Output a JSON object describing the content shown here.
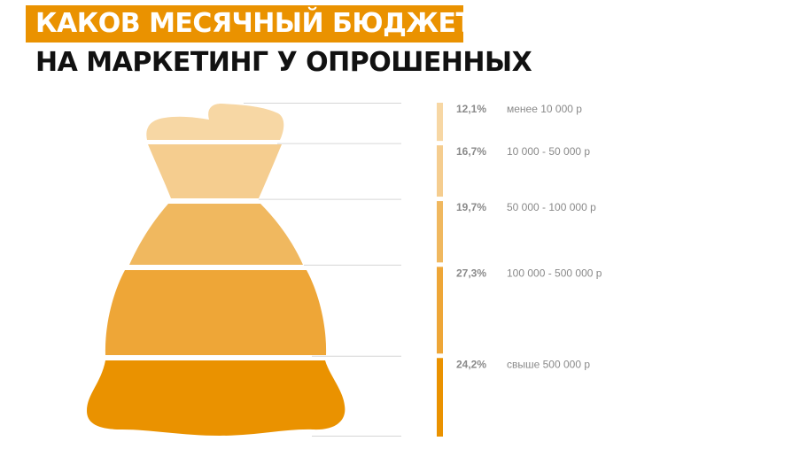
{
  "header": {
    "title_line1": "КАКОВ МЕСЯЧНЫЙ БЮДЖЕТ",
    "title_line2": "НА МАРКЕТИНГ У ОПРОШЕННЫХ"
  },
  "chart_data": {
    "type": "bar",
    "orientation": "stacked-vertical",
    "categories": [
      "менее 10 000 р",
      "10 000 - 50 000 р",
      "50 000 - 100 000 р",
      "100 000 - 500 000 р",
      "свыше 500 000 р"
    ],
    "values": [
      12.1,
      16.7,
      19.7,
      27.3,
      24.2
    ],
    "value_labels": [
      "12,1%",
      "16,7%",
      "19,7%",
      "27,3%",
      "24,2%"
    ],
    "colors": [
      "#f7d7a4",
      "#f5cd8f",
      "#f0b85f",
      "#eea637",
      "#ea9200"
    ],
    "unit": "%"
  }
}
